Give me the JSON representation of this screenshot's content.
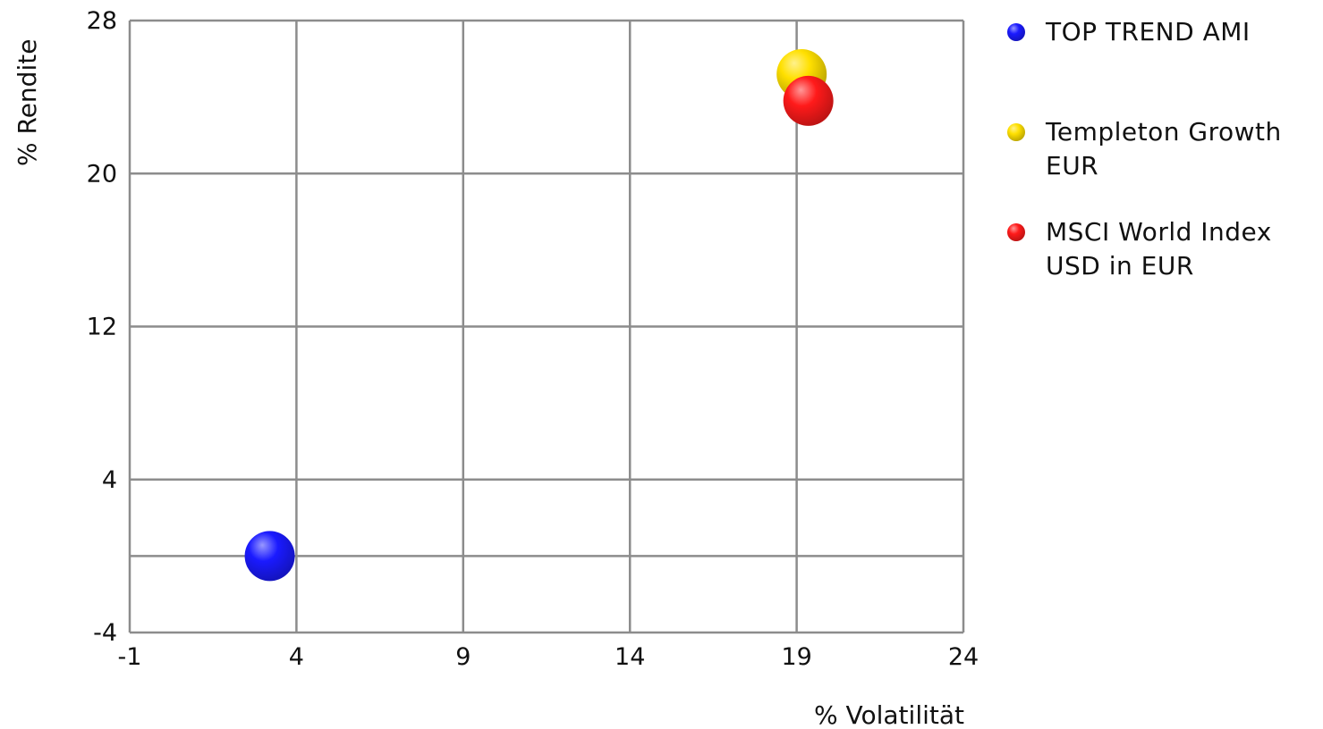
{
  "chart_data": {
    "type": "scatter",
    "xlabel": "% Volatilität",
    "ylabel": "% Rendite",
    "xlim": [
      -1,
      24
    ],
    "ylim": [
      -4,
      28
    ],
    "xticks": [
      "-1",
      "4",
      "9",
      "14",
      "19",
      "24"
    ],
    "yticks": [
      "-4",
      "4",
      "12",
      "20",
      "28"
    ],
    "grid": true,
    "legend_position": "right",
    "series": [
      {
        "name": "TOP TREND AMI",
        "legend_lines": [
          "TOP TREND AMI"
        ],
        "color": "#1a1aff",
        "points": [
          {
            "x": 3.2,
            "y": 0.0
          }
        ]
      },
      {
        "name": "Templeton Growth EUR",
        "legend_lines": [
          "Templeton Growth",
          "EUR"
        ],
        "color": "#ffe000",
        "points": [
          {
            "x": 19.15,
            "y": 25.2
          }
        ]
      },
      {
        "name": "MSCI World Index USD in EUR",
        "legend_lines": [
          "MSCI World Index",
          "USD in EUR"
        ],
        "color": "#ff1a1a",
        "points": [
          {
            "x": 19.35,
            "y": 23.8
          }
        ]
      }
    ]
  }
}
